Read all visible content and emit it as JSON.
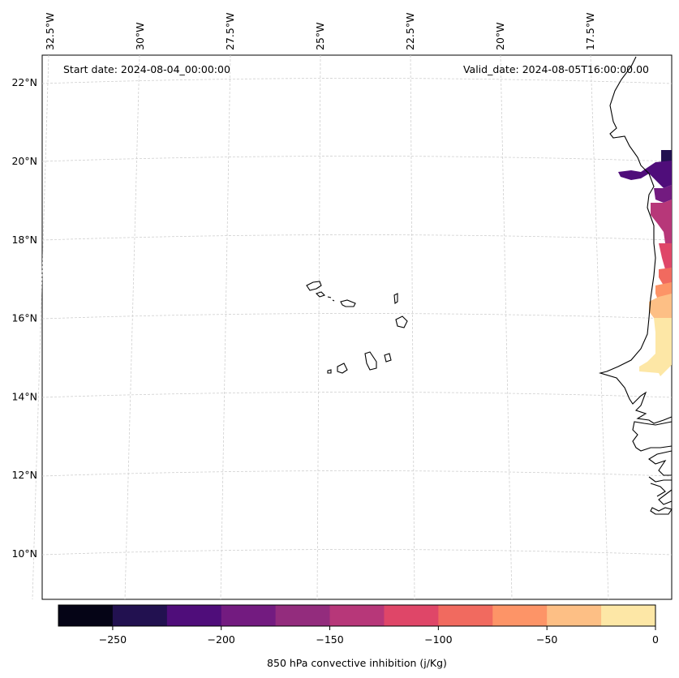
{
  "header": {
    "start_date": "Start date: 2024-08-04_00:00:00",
    "valid_date": "Valid_date: 2024-08-05T16:00:00.00"
  },
  "map": {
    "longitude_labels": [
      {
        "lon": -32.5,
        "label": "32.5°W"
      },
      {
        "lon": -30,
        "label": "30°W"
      },
      {
        "lon": -27.5,
        "label": "27.5°W"
      },
      {
        "lon": -25,
        "label": "25°W"
      },
      {
        "lon": -22.5,
        "label": "22.5°W"
      },
      {
        "lon": -20,
        "label": "20°W"
      },
      {
        "lon": -17.5,
        "label": "17.5°W"
      }
    ],
    "latitude_labels": [
      {
        "lat": 22,
        "label": "22°N"
      },
      {
        "lat": 20,
        "label": "20°N"
      },
      {
        "lat": 18,
        "label": "18°N"
      },
      {
        "lat": 16,
        "label": "16°N"
      },
      {
        "lat": 14,
        "label": "14°N"
      },
      {
        "lat": 12,
        "label": "12°N"
      },
      {
        "lat": 10,
        "label": "10°N"
      }
    ],
    "coastline_color": "#000000",
    "grid_color": "#cfcfcf"
  },
  "colorbar": {
    "label": "850 hPa convective inhibition (j/Kg)",
    "bounds": [
      -275,
      -250,
      -225,
      -200,
      -175,
      -150,
      -125,
      -100,
      -75,
      -50,
      -25,
      0
    ],
    "colors": [
      "#050416",
      "#221150",
      "#4f0d7a",
      "#731b80",
      "#932c7d",
      "#b73779",
      "#df4668",
      "#f16a5f",
      "#fd9467",
      "#fdbf85",
      "#fde7a6"
    ],
    "ticks": [
      {
        "value": -250,
        "label": "−250"
      },
      {
        "value": -200,
        "label": "−200"
      },
      {
        "value": -150,
        "label": "−150"
      },
      {
        "value": -100,
        "label": "−100"
      },
      {
        "value": -50,
        "label": "−50"
      },
      {
        "value": 0,
        "label": "0"
      }
    ]
  }
}
